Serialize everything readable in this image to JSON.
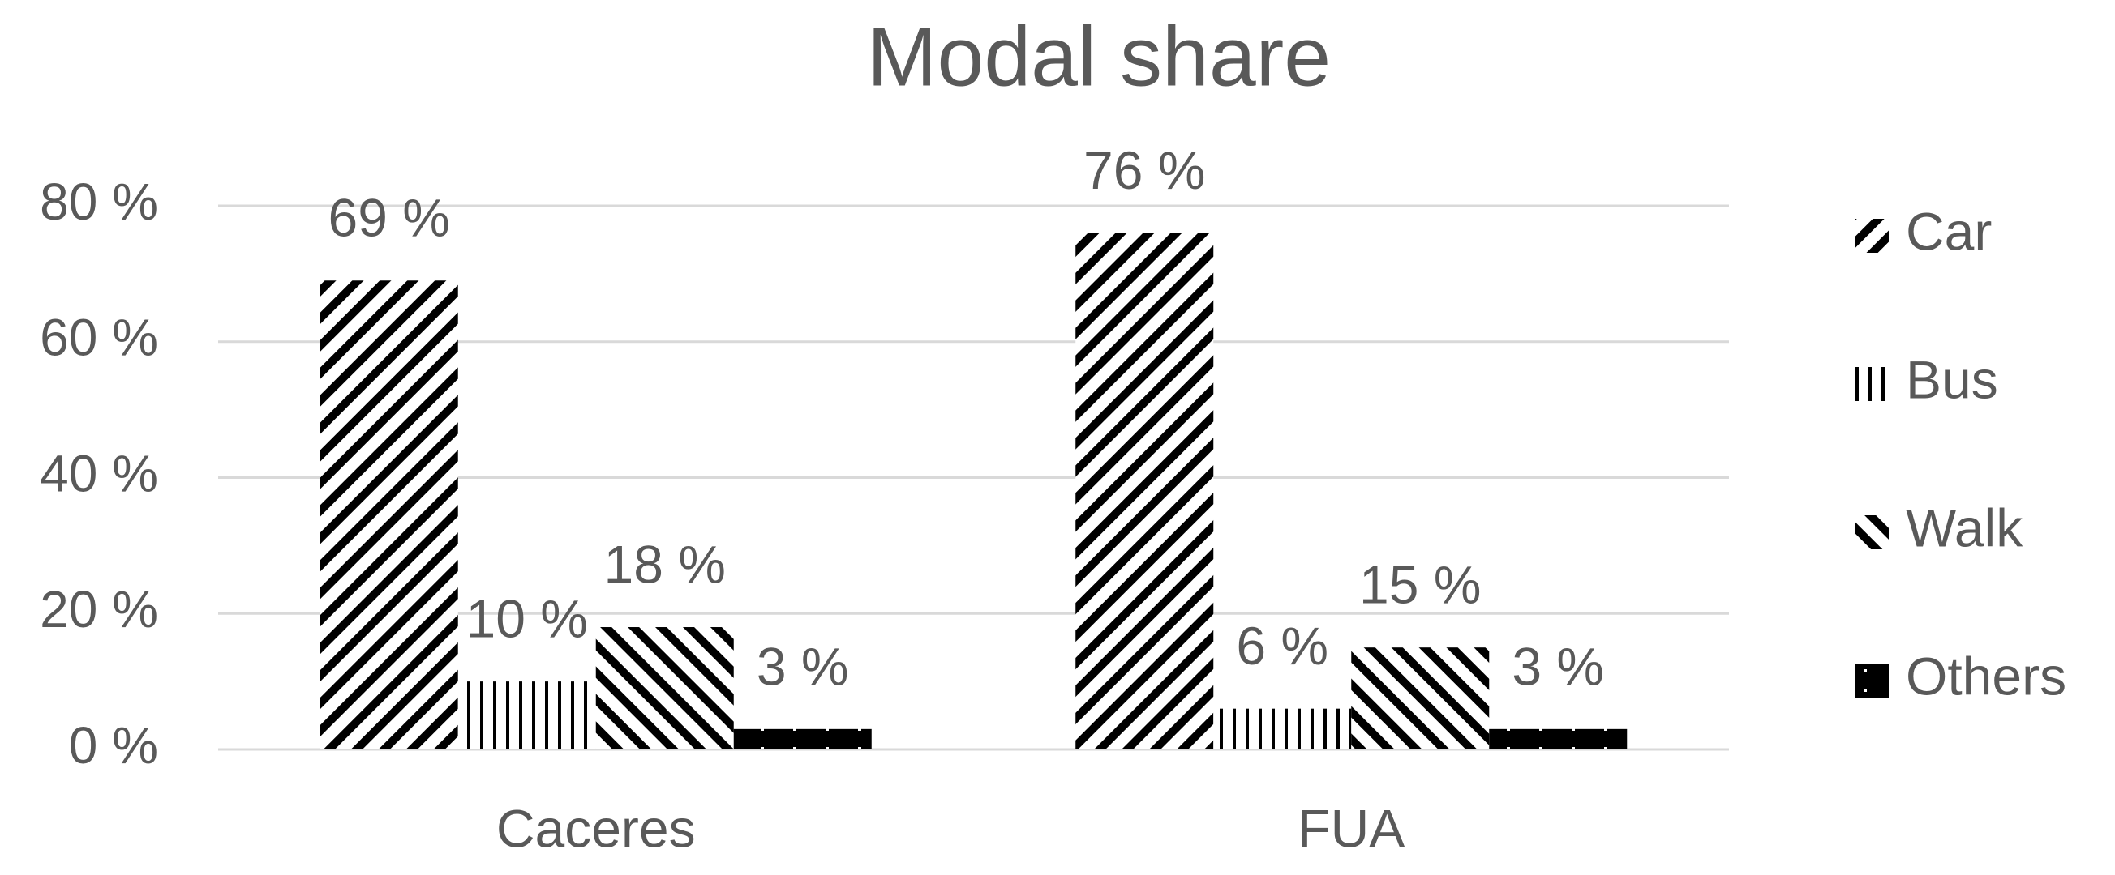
{
  "chart_data": {
    "type": "bar",
    "title": "Modal share",
    "categories": [
      "Caceres",
      "FUA"
    ],
    "series": [
      {
        "name": "Car",
        "color": "#000000",
        "pattern": "diagonal-up",
        "values": [
          69,
          76
        ],
        "value_labels": [
          "69 %",
          "76 %"
        ]
      },
      {
        "name": "Bus",
        "color": "#000000",
        "pattern": "vertical",
        "values": [
          10,
          6
        ],
        "value_labels": [
          "10 %",
          "6 %"
        ]
      },
      {
        "name": "Walk",
        "color": "#000000",
        "pattern": "diagonal-down",
        "values": [
          18,
          15
        ],
        "value_labels": [
          "18 %",
          "15 %"
        ]
      },
      {
        "name": "Others",
        "color": "#000000",
        "pattern": "dots",
        "values": [
          3,
          3
        ],
        "value_labels": [
          "3 %",
          "3 %"
        ]
      }
    ],
    "ylim": [
      0,
      80
    ],
    "yticks": [
      {
        "value": 0,
        "label": "0 %"
      },
      {
        "value": 20,
        "label": "20 %"
      },
      {
        "value": 40,
        "label": "40 %"
      },
      {
        "value": 60,
        "label": "60 %"
      },
      {
        "value": 80,
        "label": "80 %"
      }
    ],
    "grid": true,
    "legend": "right"
  }
}
